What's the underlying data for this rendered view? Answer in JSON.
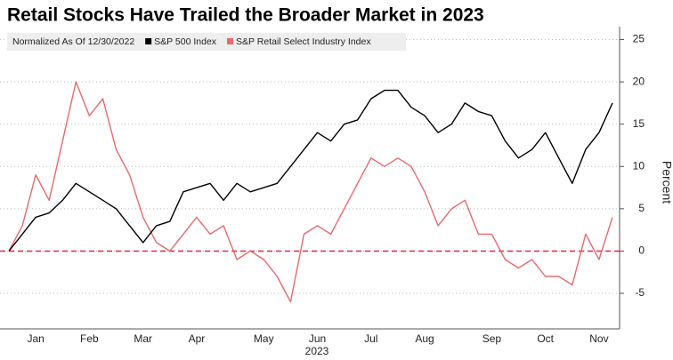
{
  "chart_data": {
    "type": "line",
    "title": "Retail Stocks Have Trailed the Broader Market in 2023",
    "legend_title": "Normalized As Of 12/30/2022",
    "y_label": "Percent",
    "x_label": "2023",
    "categories": [
      null,
      null,
      "Jan",
      null,
      null,
      null,
      "Feb",
      null,
      null,
      null,
      "Mar",
      null,
      null,
      null,
      "Apr",
      null,
      null,
      null,
      null,
      "May",
      null,
      null,
      null,
      "Jun",
      null,
      null,
      null,
      "Jul",
      null,
      null,
      null,
      "Aug",
      null,
      null,
      null,
      null,
      "Sep",
      null,
      null,
      null,
      "Oct",
      null,
      null,
      null,
      "Nov",
      null
    ],
    "series": [
      {
        "name": "S&P 500 Index",
        "color": "#000000",
        "values": [
          0,
          2,
          4,
          4.5,
          6,
          8,
          7,
          6,
          5,
          3,
          1,
          3,
          3.5,
          7,
          7.5,
          8,
          6,
          8,
          7,
          7.5,
          8,
          10,
          12,
          14,
          13,
          15,
          15.5,
          18,
          19,
          19,
          17,
          16,
          14,
          15,
          17.5,
          16.5,
          16,
          13,
          11,
          12,
          14,
          11,
          8,
          12,
          14,
          17.5
        ]
      },
      {
        "name": "S&P Retail Select Industry Index",
        "color": "#e8696b",
        "values": [
          0,
          3,
          9,
          6,
          13,
          20,
          16,
          18,
          12,
          9,
          4,
          1,
          0,
          2,
          4,
          2,
          3,
          -1,
          0,
          -1,
          -3,
          -6,
          2,
          3,
          2,
          5,
          8,
          11,
          10,
          11,
          10,
          7,
          3,
          5,
          6,
          2,
          2,
          -1,
          -2,
          -1,
          -3,
          -3,
          -4,
          2,
          -1,
          4
        ]
      }
    ],
    "ylim": [
      -9.2,
      26
    ],
    "yticks": [
      -5,
      0,
      5,
      10,
      15,
      20,
      25
    ],
    "grid": true,
    "zero_line": {
      "value": 0,
      "color": "#e0284a"
    },
    "legend_position": "top-left"
  }
}
